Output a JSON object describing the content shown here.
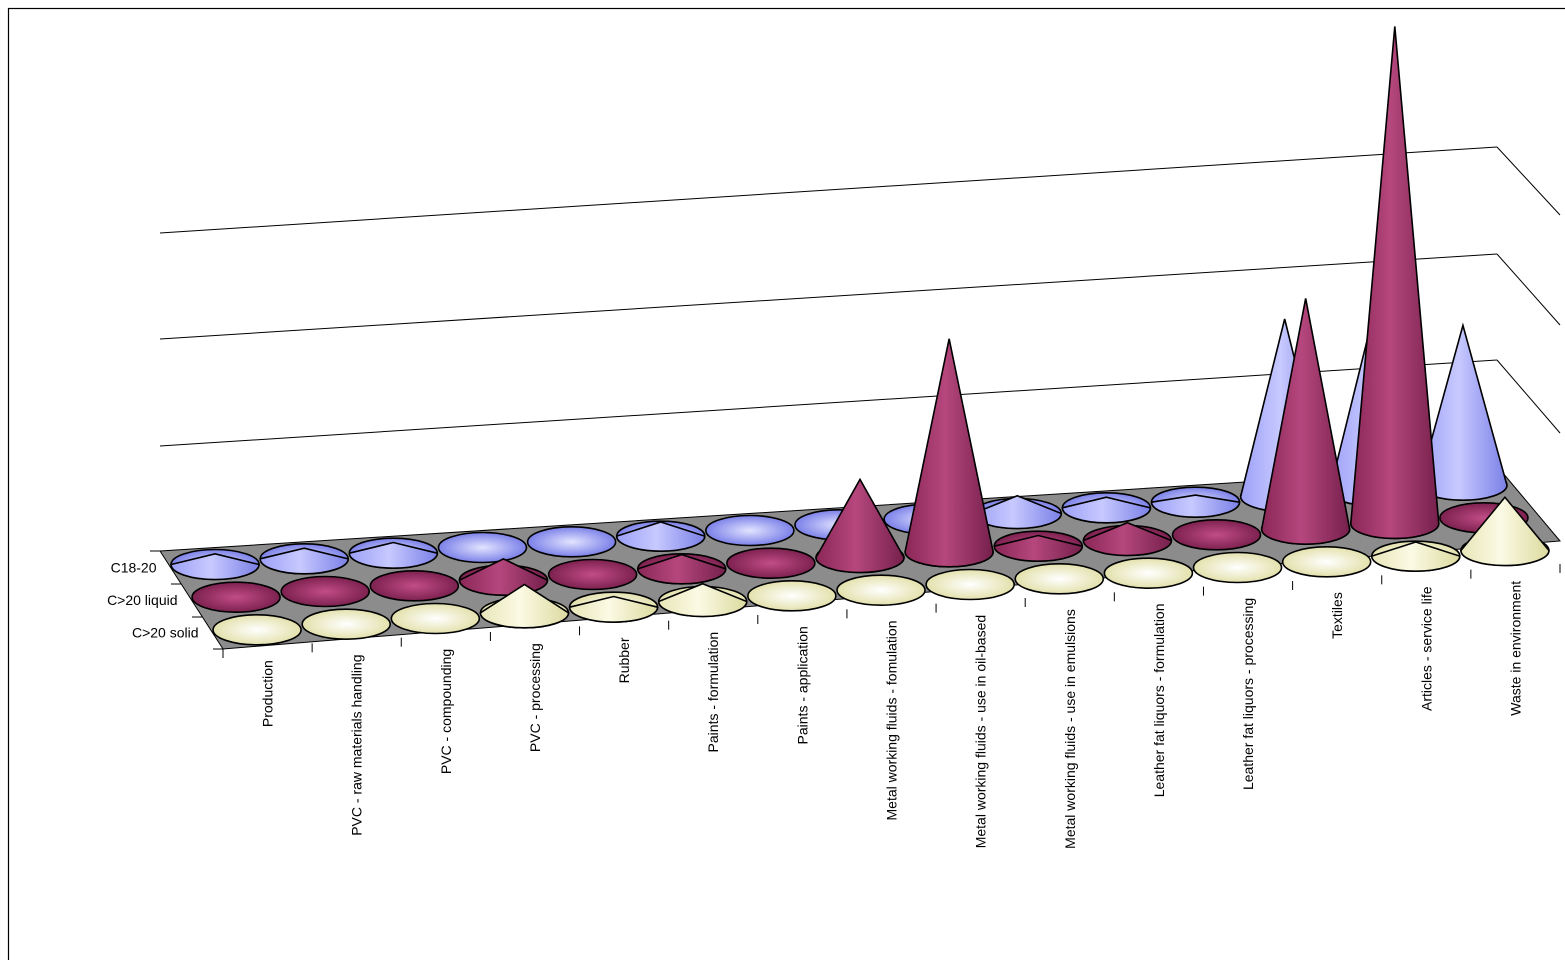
{
  "chart_data": {
    "type": "3d-cone",
    "title": "",
    "xlabel": "",
    "ylabel": "",
    "categories": [
      "Production",
      "PVC - raw materials handling",
      "PVC - compounding",
      "PVC - processing",
      "Rubber",
      "Paints - formulation",
      "Paints - application",
      "Metal working fluids - fomulation",
      "Metal working fluids - use in oil-based",
      "Metal working fluids - use in emulsions",
      "Leather fat liquors - formulation",
      "Leather fat liquors - processing",
      "Textiles",
      "Articles - service life",
      "Waste in environment"
    ],
    "series": [
      {
        "name": "C18-20",
        "values": [
          0.3,
          0.3,
          0.3,
          0,
          0,
          0.4,
          0,
          0,
          0,
          0.5,
          0.3,
          0.2,
          5,
          5,
          4.5
        ]
      },
      {
        "name": "C>20 liquid",
        "values": [
          0,
          0,
          0,
          0.6,
          0,
          0.4,
          0,
          2.2,
          6,
          0.3,
          0.5,
          0,
          6.5,
          14,
          0
        ]
      },
      {
        "name": "C>20 solid",
        "values": [
          0,
          0,
          0,
          0.8,
          0.3,
          0.5,
          0,
          0,
          0,
          0,
          0,
          0,
          0,
          0.4,
          1.5
        ]
      }
    ],
    "colors": {
      "C18-20": "#8a8ff0",
      "C>20 liquid": "#8b2a5c",
      "C>20 solid": "#ecebbd",
      "floor": "#8c8c8c",
      "outline": "#000000"
    },
    "ylim": [
      0,
      15
    ],
    "grid": true,
    "legend": "none"
  }
}
